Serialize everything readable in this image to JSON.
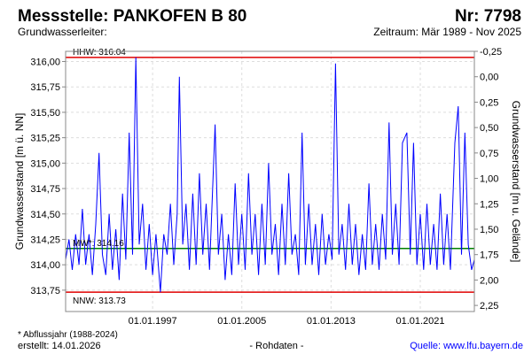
{
  "header": {
    "title": "Messstelle: PANKOFEN B 80",
    "number": "Nr: 7798",
    "aquifer": "Grundwasserleiter:",
    "period": "Zeitraum: Mär 1989 - Nov 2025"
  },
  "footer": {
    "note": "* Abflussjahr (1988-2024)",
    "created": "erstellt:  14.01.2026",
    "raw": "- Rohdaten -",
    "source": "Quelle: www.lfu.bayern.de"
  },
  "colors": {
    "series": "#0000ff",
    "extreme": "#e00000",
    "mean": "#008000",
    "source": "#0000ff"
  },
  "chart_data": {
    "type": "line",
    "ylabel": "Grundwasserstand [m ü. NN]",
    "y2label": "Grundwasserstand [m u. Gelände]",
    "ylim": [
      313.54,
      316.1
    ],
    "xlim": [
      1989.2,
      2025.85
    ],
    "ground_level": 315.85,
    "yticks": [
      {
        "v": 313.75,
        "label": "313,75"
      },
      {
        "v": 314.0,
        "label": "314,00"
      },
      {
        "v": 314.25,
        "label": "314,25"
      },
      {
        "v": 314.5,
        "label": "314,50"
      },
      {
        "v": 314.75,
        "label": "314,75"
      },
      {
        "v": 315.0,
        "label": "315,00"
      },
      {
        "v": 315.25,
        "label": "315,25"
      },
      {
        "v": 315.5,
        "label": "315,50"
      },
      {
        "v": 315.75,
        "label": "315,75"
      },
      {
        "v": 316.0,
        "label": "316,00"
      }
    ],
    "y2ticks": [
      {
        "v": -0.25,
        "label": "-0,25"
      },
      {
        "v": 0,
        "label": "0,00"
      },
      {
        "v": 0.25,
        "label": "0,25"
      },
      {
        "v": 0.5,
        "label": "0,50"
      },
      {
        "v": 0.75,
        "label": "0,75"
      },
      {
        "v": 1.0,
        "label": "1,00"
      },
      {
        "v": 1.25,
        "label": "1,25"
      },
      {
        "v": 1.5,
        "label": "1,50"
      },
      {
        "v": 1.75,
        "label": "1,75"
      },
      {
        "v": 2.0,
        "label": "2,00"
      },
      {
        "v": 2.25,
        "label": "2,25"
      }
    ],
    "xticks": [
      {
        "v": 1997.0,
        "label": "01.01.1997"
      },
      {
        "v": 2005.0,
        "label": "01.01.2005"
      },
      {
        "v": 2013.0,
        "label": "01.01.2013"
      },
      {
        "v": 2021.0,
        "label": "01.01.2021"
      }
    ],
    "reference_lines": [
      {
        "name": "HHW",
        "value": 316.04,
        "label": "HHW: 316.04",
        "color": "#e00000"
      },
      {
        "name": "MW",
        "value": 314.16,
        "label": "MW*: 314.16",
        "color": "#008000"
      },
      {
        "name": "NNW",
        "value": 313.73,
        "label": "NNW: 313.73",
        "color": "#e00000"
      }
    ],
    "series": [
      {
        "name": "Grundwasserstand",
        "x": [
          1989.2,
          1989.5,
          1989.8,
          1990.1,
          1990.4,
          1990.7,
          1991.0,
          1991.3,
          1991.6,
          1991.9,
          1992.2,
          1992.5,
          1992.8,
          1993.1,
          1993.4,
          1993.7,
          1994.0,
          1994.3,
          1994.6,
          1994.9,
          1995.2,
          1995.5,
          1995.8,
          1996.1,
          1996.4,
          1996.7,
          1997.0,
          1997.3,
          1997.7,
          1998.0,
          1998.3,
          1998.6,
          1998.9,
          1999.2,
          1999.4,
          1999.7,
          2000.0,
          2000.3,
          2000.6,
          2000.9,
          2001.2,
          2001.5,
          2001.8,
          2002.1,
          2002.6,
          2002.9,
          2003.2,
          2003.5,
          2003.8,
          2004.1,
          2004.4,
          2004.7,
          2005.0,
          2005.3,
          2005.6,
          2005.9,
          2006.2,
          2006.5,
          2006.8,
          2007.1,
          2007.4,
          2007.7,
          2008.0,
          2008.3,
          2008.6,
          2008.9,
          2009.2,
          2009.5,
          2009.8,
          2010.1,
          2010.4,
          2010.7,
          2011.0,
          2011.3,
          2011.6,
          2011.9,
          2012.2,
          2012.5,
          2012.8,
          2013.1,
          2013.4,
          2013.7,
          2014.0,
          2014.3,
          2014.6,
          2014.9,
          2015.2,
          2015.5,
          2015.8,
          2016.1,
          2016.4,
          2016.7,
          2017.0,
          2017.3,
          2017.6,
          2017.9,
          2018.2,
          2018.5,
          2018.8,
          2019.1,
          2019.4,
          2019.8,
          2020.1,
          2020.4,
          2020.7,
          2021.0,
          2021.3,
          2021.6,
          2021.9,
          2022.2,
          2022.5,
          2022.8,
          2023.1,
          2023.4,
          2023.7,
          2024.1,
          2024.4,
          2024.7,
          2025.0,
          2025.3,
          2025.6,
          2025.85
        ],
        "y": [
          314.05,
          314.25,
          313.95,
          314.3,
          314.0,
          314.55,
          314.0,
          314.3,
          313.9,
          314.4,
          315.1,
          314.1,
          313.9,
          314.5,
          313.95,
          314.35,
          313.85,
          314.7,
          314.05,
          315.3,
          314.1,
          316.04,
          314.2,
          314.6,
          313.95,
          314.4,
          313.9,
          314.3,
          313.73,
          314.3,
          314.1,
          314.6,
          314.0,
          314.5,
          315.85,
          314.2,
          314.6,
          313.95,
          314.7,
          314.0,
          314.9,
          314.1,
          314.6,
          313.95,
          315.38,
          314.1,
          314.5,
          313.85,
          314.3,
          313.9,
          314.8,
          314.0,
          314.5,
          313.95,
          314.9,
          314.1,
          314.5,
          313.9,
          314.6,
          314.0,
          315.0,
          314.1,
          314.4,
          313.9,
          314.6,
          314.0,
          314.9,
          314.1,
          314.3,
          313.9,
          315.3,
          314.0,
          314.6,
          314.0,
          314.4,
          313.9,
          314.5,
          314.0,
          314.3,
          314.05,
          315.98,
          314.1,
          314.4,
          313.95,
          314.6,
          314.0,
          314.4,
          313.9,
          314.3,
          313.95,
          314.8,
          314.0,
          314.4,
          313.95,
          314.5,
          314.05,
          315.4,
          314.1,
          314.6,
          314.0,
          315.2,
          315.3,
          314.1,
          315.2,
          314.0,
          314.5,
          313.95,
          314.6,
          314.0,
          314.4,
          313.95,
          314.7,
          314.0,
          314.5,
          313.95,
          315.2,
          315.56,
          314.1,
          315.3,
          314.2,
          313.95,
          314.05
        ]
      }
    ]
  }
}
